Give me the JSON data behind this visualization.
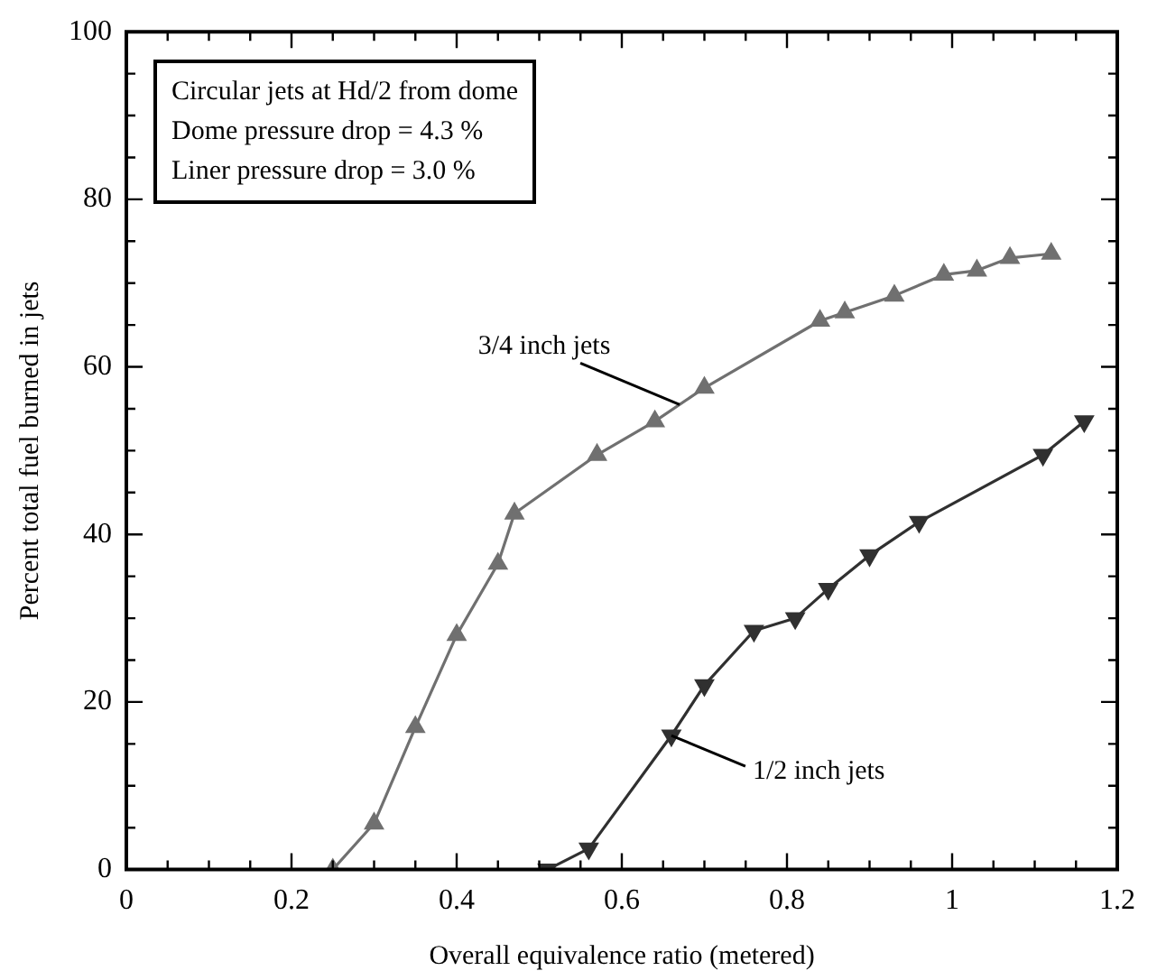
{
  "chart_data": {
    "type": "line",
    "xlabel": "Overall equivalence ratio (metered)",
    "ylabel": "Percent total fuel burned in jets",
    "annotations": [
      "Circular jets at Hd/2 from dome",
      "Dome pressure drop = 4.3 %",
      "Liner pressure drop  = 3.0 %",
      {
        "text": "3/4 inch jets",
        "x": 0.67,
        "y": 55.5
      },
      {
        "text": "1/2 inch jets",
        "x": 0.66,
        "y": 16
      }
    ],
    "series": [
      {
        "color": "#707070",
        "marker": "triangle",
        "x": [
          0.25,
          0.3,
          0.35,
          0.4,
          0.45,
          0.47,
          0.57,
          0.64,
          0.7,
          0.84,
          0.87,
          0.93,
          0.99,
          1.03,
          1.07,
          1.12
        ],
        "values": [
          0,
          5.5,
          17,
          28,
          36.5,
          42.5,
          49.5,
          53.5,
          57.5,
          65.5,
          66.5,
          68.5,
          71,
          71.5,
          73,
          73.5
        ]
      },
      {
        "color": "#303030",
        "marker": "triangle",
        "x": [
          0.51,
          0.56,
          0.66,
          0.7,
          0.76,
          0.81,
          0.85,
          0.9,
          0.96,
          1.11,
          1.16
        ],
        "values": [
          0,
          2.5,
          16,
          22,
          28.5,
          30,
          33.5,
          37.5,
          41.5,
          49.5,
          53.5
        ]
      }
    ],
    "xlim": [
      0,
      1.2
    ],
    "ylim": [
      0,
      100
    ],
    "xticks": [
      0,
      {
        "value": 0.05,
        "label": null
      },
      {
        "value": 0.1,
        "label": null
      },
      {
        "value": 0.15,
        "label": null
      },
      0.2,
      {
        "value": 0.25,
        "label": null
      },
      {
        "value": 0.3,
        "label": null
      },
      {
        "value": 0.35,
        "label": null
      },
      0.4,
      {
        "value": 0.45,
        "label": null
      },
      {
        "value": 0.5,
        "label": null
      },
      {
        "value": 0.55,
        "label": null
      },
      0.6,
      {
        "value": 0.65,
        "label": null
      },
      {
        "value": 0.7,
        "label": null
      },
      {
        "value": 0.75,
        "label": null
      },
      0.8,
      {
        "value": 0.85,
        "label": null
      },
      {
        "value": 0.9,
        "label": null
      },
      {
        "value": 0.95,
        "label": null
      },
      1,
      {
        "value": 1.05,
        "label": null
      },
      {
        "value": 1.1,
        "label": null
      },
      {
        "value": 1.15,
        "label": null
      },
      1.2
    ],
    "yticks": [
      0,
      {
        "value": 5,
        "label": null
      },
      {
        "value": 10,
        "label": null
      },
      {
        "value": 15,
        "label": null
      },
      20,
      {
        "value": 25,
        "label": null
      },
      {
        "value": 30,
        "label": null
      },
      {
        "value": 35,
        "label": null
      },
      40,
      {
        "value": 45,
        "label": null
      },
      {
        "value": 50,
        "label": null
      },
      {
        "value": 55,
        "label": null
      },
      60,
      {
        "value": 65,
        "label": null
      },
      {
        "value": 70,
        "label": null
      },
      {
        "value": 75,
        "label": null
      },
      80,
      {
        "value": 85,
        "label": null
      },
      {
        "value": 90,
        "label": null
      },
      {
        "value": 95,
        "label": null
      },
      100
    ],
    "grid": false,
    "legend": false,
    "line_style": "solid"
  }
}
